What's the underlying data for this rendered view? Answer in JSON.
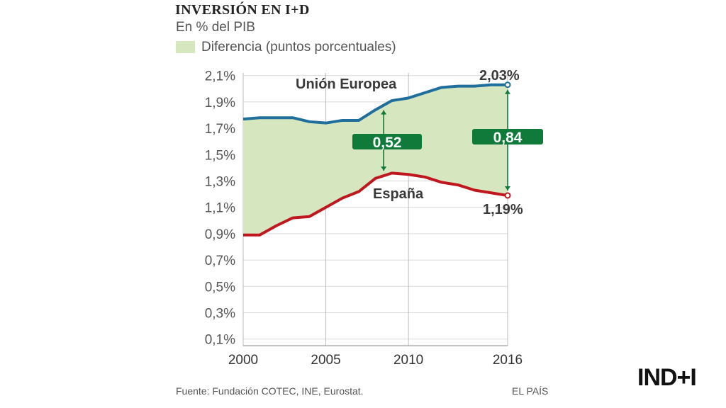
{
  "chart_data": {
    "type": "area",
    "title": "INVERSIÓN EN I+D",
    "subtitle": "En % del PIB",
    "legend": [
      {
        "label": "Diferencia (puntos porcentuales)",
        "color": "#d6e7c0"
      }
    ],
    "x": [
      2000,
      2001,
      2002,
      2003,
      2004,
      2005,
      2006,
      2007,
      2008,
      2009,
      2010,
      2011,
      2012,
      2013,
      2014,
      2015,
      2016
    ],
    "xticks": [
      {
        "value": 2000,
        "label": "2000"
      },
      {
        "value": 2005,
        "label": "2005"
      },
      {
        "value": 2010,
        "label": "2010"
      },
      {
        "value": 2016,
        "label": "2016"
      }
    ],
    "yticks": [
      {
        "value": 2.1,
        "label": "2,1%"
      },
      {
        "value": 1.9,
        "label": "1,9%"
      },
      {
        "value": 1.7,
        "label": "1,7%"
      },
      {
        "value": 1.5,
        "label": "1,5%"
      },
      {
        "value": 1.3,
        "label": "1,3%"
      },
      {
        "value": 1.1,
        "label": "1,1%"
      },
      {
        "value": 0.9,
        "label": "0,9%"
      },
      {
        "value": 0.7,
        "label": "0,7%"
      },
      {
        "value": 0.5,
        "label": "0,5%"
      },
      {
        "value": 0.3,
        "label": "0,3%"
      },
      {
        "value": 0.1,
        "label": "0,1%"
      }
    ],
    "ylim": [
      0.05,
      2.12
    ],
    "series": [
      {
        "name": "Unión Europea",
        "color": "#1f6e9c",
        "values": [
          1.77,
          1.78,
          1.78,
          1.78,
          1.75,
          1.74,
          1.76,
          1.76,
          1.84,
          1.91,
          1.93,
          1.97,
          2.01,
          2.02,
          2.02,
          2.03,
          2.03
        ],
        "end_label": "2,03%"
      },
      {
        "name": "España",
        "color": "#c0161e",
        "values": [
          0.89,
          0.89,
          0.96,
          1.02,
          1.03,
          1.1,
          1.17,
          1.22,
          1.32,
          1.36,
          1.35,
          1.33,
          1.29,
          1.27,
          1.23,
          1.21,
          1.19
        ],
        "end_label": "1,19%"
      }
    ],
    "annotations": [
      {
        "x": 2008.5,
        "label": "0,52",
        "color": "#0f7a3a"
      },
      {
        "x": 2016,
        "label": "0,84",
        "color": "#0f7a3a"
      }
    ]
  },
  "footer": {
    "source": "Fuente: Fundación COTEC, INE, Eurostat.",
    "brand": "EL PAÍS"
  },
  "logo": "IND+I"
}
